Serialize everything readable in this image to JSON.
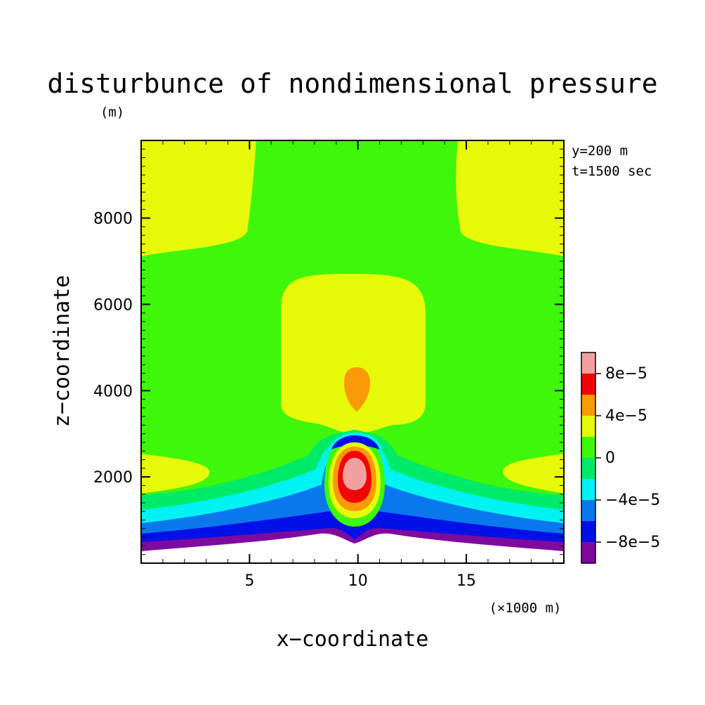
{
  "chart_data": {
    "type": "heatmap",
    "title": "disturbunce of nondimensional pressure",
    "xlabel": "x−coordinate",
    "ylabel": "z−coordinate",
    "x_unit": "(×1000 m)",
    "y_unit": "(m)",
    "annotations": [
      "y=200 m",
      "t=1500 sec"
    ],
    "xlim": [
      0,
      19.5
    ],
    "ylim": [
      0,
      9800
    ],
    "x_ticks": [
      5,
      10,
      15
    ],
    "x_tick_labels": [
      "5",
      "10",
      "15"
    ],
    "y_ticks": [
      2000,
      4000,
      6000,
      8000
    ],
    "y_tick_labels": [
      "2000",
      "4000",
      "6000",
      "8000"
    ],
    "colorbar": {
      "levels": [
        "<-8e-5",
        "-8e-5..-6e-5",
        "-6e-5..-4e-5",
        "-4e-5..-2e-5",
        "-2e-5..0",
        "0..2e-5",
        "2e-5..4e-5",
        "4e-5..6e-5",
        "6e-5..8e-5",
        ">8e-5"
      ],
      "colors": [
        "#7f0a9e",
        "#0010e6",
        "#0a78ec",
        "#00f2f2",
        "#00ea6a",
        "#3ef70a",
        "#e6fa0a",
        "#fb9906",
        "#f20404",
        "#f4a0a0"
      ],
      "tick_labels": [
        "8e−5",
        "4e−5",
        "0",
        "−4e−5",
        "−8e−5"
      ],
      "tick_values": [
        8e-05,
        4e-05,
        0,
        -4e-05,
        -8e-05
      ]
    },
    "regions": {
      "terrain_peak": [
        10,
        500
      ],
      "upper_positive_lobes": [
        {
          "x_range": [
            0,
            5
          ],
          "z_range": [
            7100,
            9800
          ]
        },
        {
          "x_range": [
            14.5,
            19.5
          ],
          "z_range": [
            7100,
            9800
          ]
        }
      ],
      "mid_positive_region": {
        "x_range": [
          6.5,
          13.5
        ],
        "z_range": [
          3100,
          6800
        ]
      },
      "mid_maximum": {
        "x": 10,
        "z": 4100,
        "level": "4e-5..6e-5"
      },
      "core_maximum": {
        "x": 10,
        "z": 2150,
        "level": ">8e-5"
      },
      "low_negative_layers": {
        "z_range": [
          400,
          1800
        ]
      }
    }
  }
}
